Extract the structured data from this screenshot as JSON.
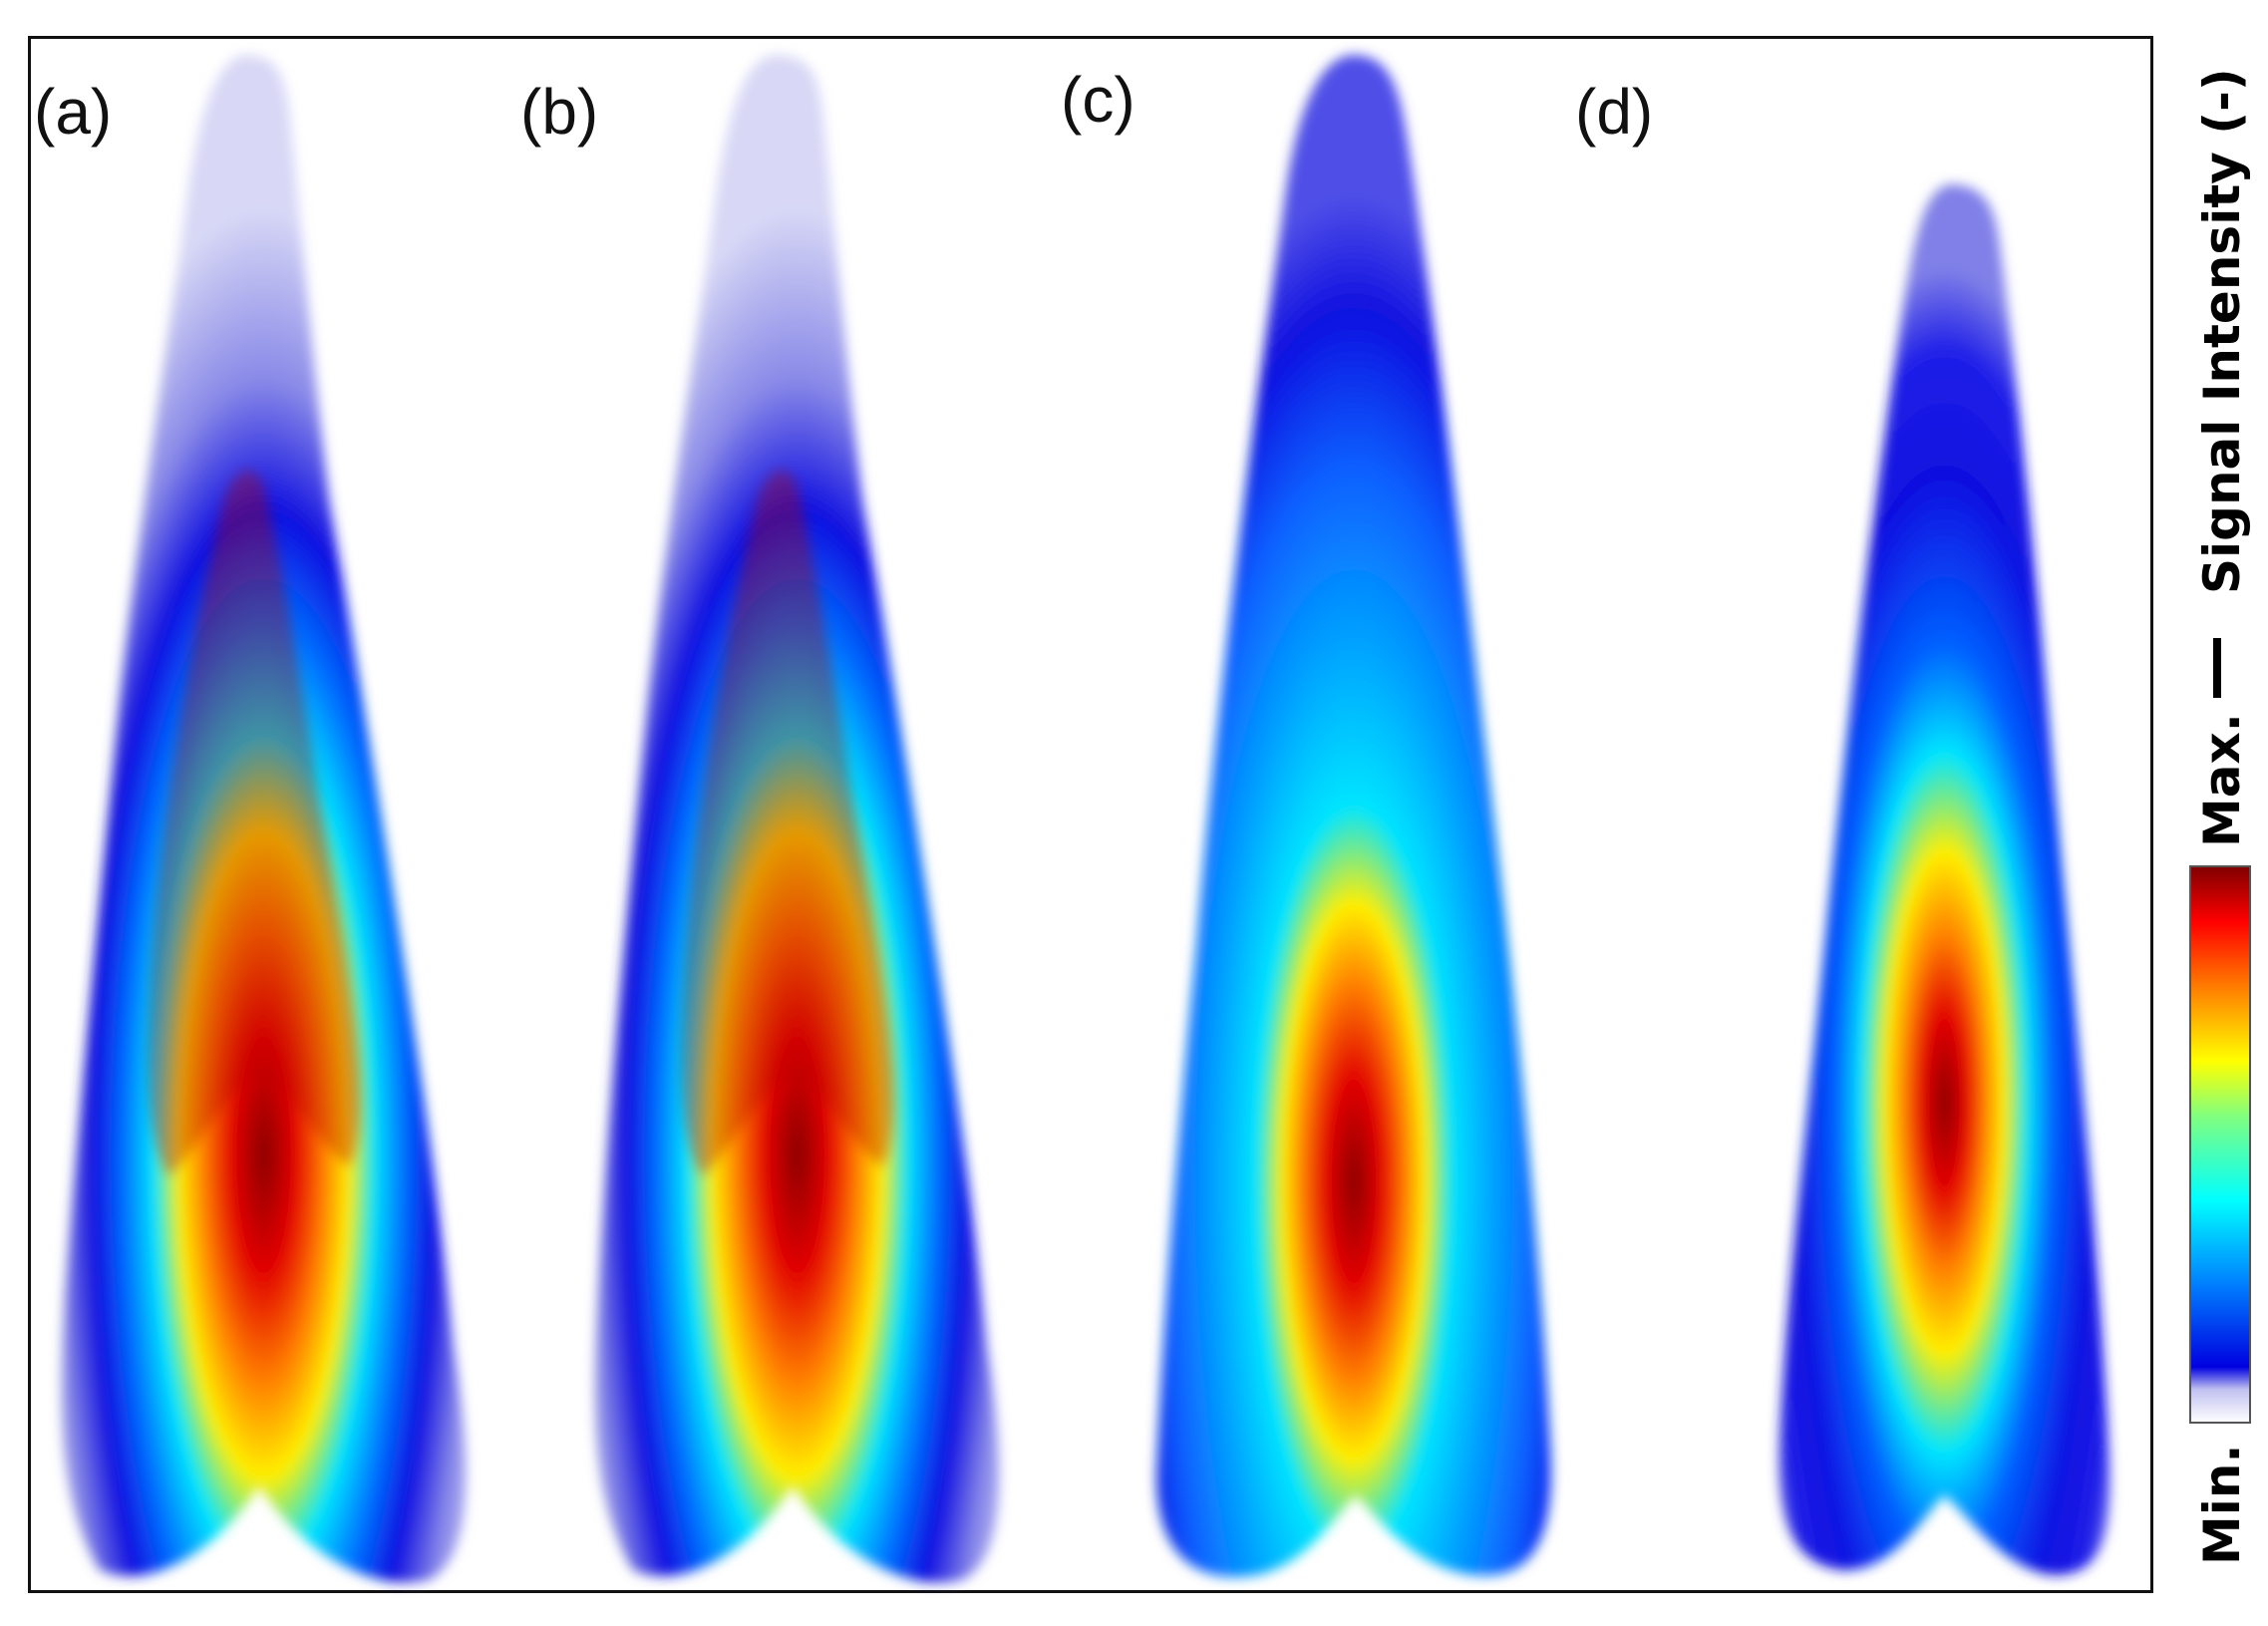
{
  "chart_data": {
    "type": "heatmap",
    "panels": [
      {
        "label": "(a)"
      },
      {
        "label": "(b)"
      },
      {
        "label": "(c)"
      },
      {
        "label": "(d)"
      }
    ],
    "colorbar": {
      "title": "Signal Intensity (-)",
      "min_label": "Min.",
      "max_label": "Max.",
      "colormap": [
        "#ffffff",
        "#c8c8f0",
        "#0000e0",
        "#0080ff",
        "#00ffff",
        "#ffff00",
        "#ff8000",
        "#ff0000",
        "#800000"
      ]
    }
  }
}
